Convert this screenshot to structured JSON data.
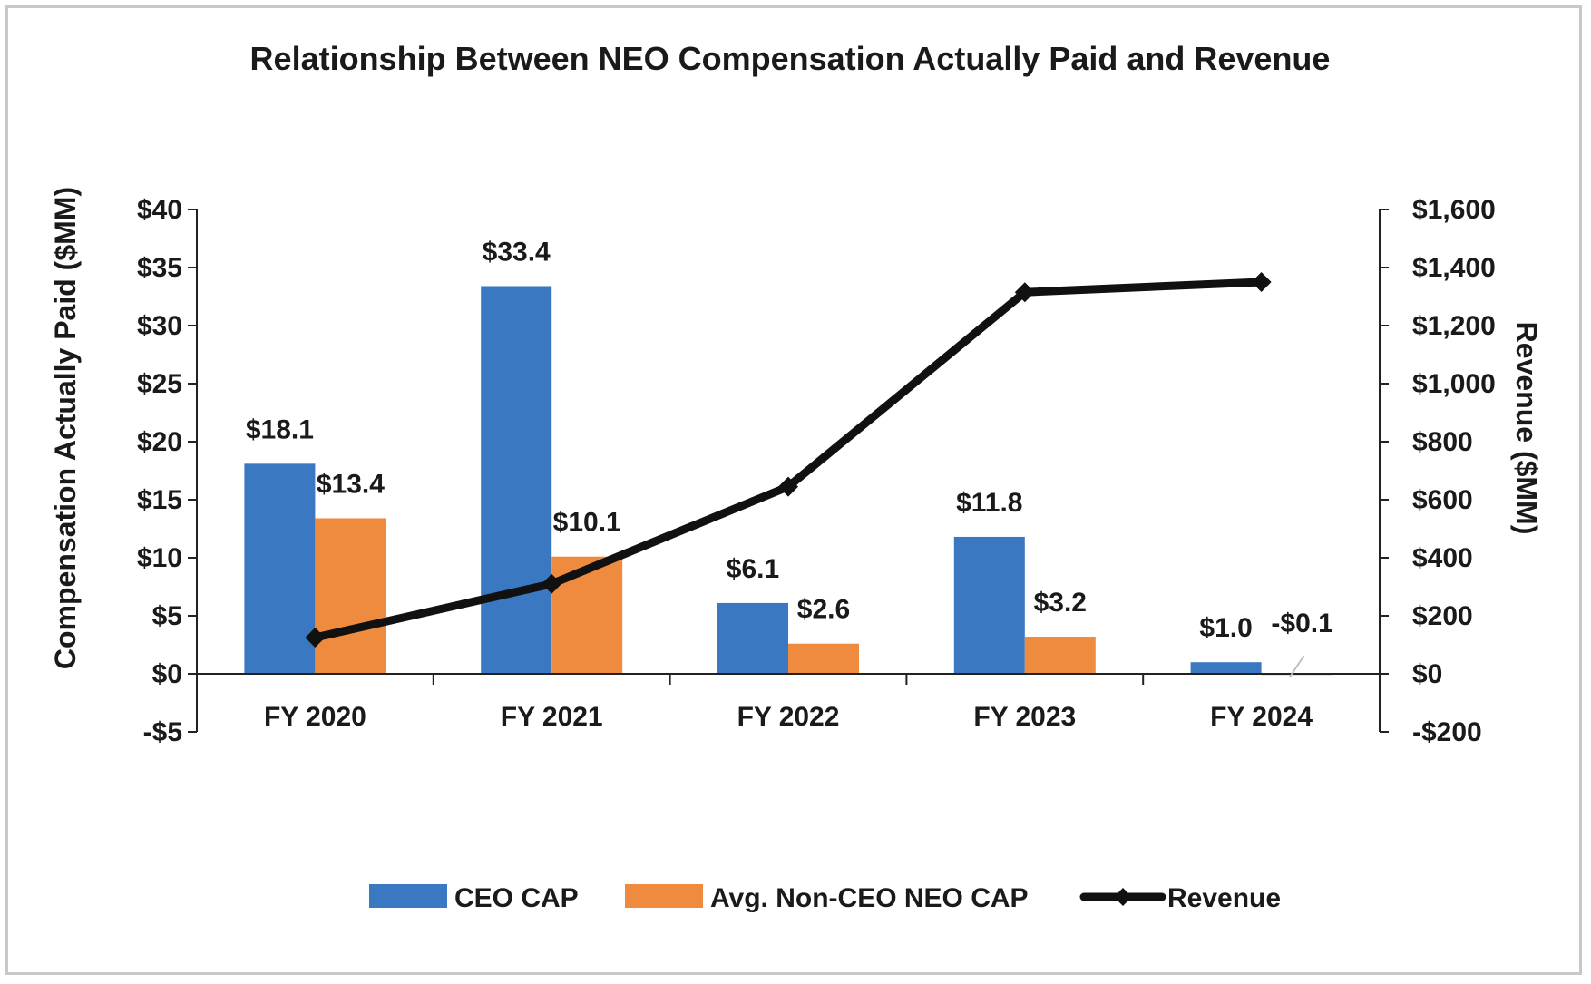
{
  "chart_data": {
    "type": "bar",
    "title": "Relationship Between NEO Compensation Actually Paid and Revenue",
    "categories": [
      "FY 2020",
      "FY 2021",
      "FY 2022",
      "FY 2023",
      "FY 2024"
    ],
    "ylabel": "Compensation Actually Paid ($MM)",
    "y2label": "Revenue ($MM)",
    "ylim": [
      -5,
      40
    ],
    "y_ticks": [
      -5,
      0,
      5,
      10,
      15,
      20,
      25,
      30,
      35,
      40
    ],
    "y_tick_labels": [
      "-$5",
      "$0",
      "$5",
      "$10",
      "$15",
      "$20",
      "$25",
      "$30",
      "$35",
      "$40"
    ],
    "y2lim": [
      -200,
      1600
    ],
    "y2_ticks": [
      -200,
      0,
      200,
      400,
      600,
      800,
      1000,
      1200,
      1400,
      1600
    ],
    "y2_tick_labels": [
      "-$200",
      "$0",
      "$200",
      "$400",
      "$600",
      "$800",
      "$1,000",
      "$1,200",
      "$1,400",
      "$1,600"
    ],
    "series": [
      {
        "name": "CEO CAP",
        "type": "bar",
        "axis": "left",
        "color": "#3a78c2",
        "values": [
          18.1,
          33.4,
          6.1,
          11.8,
          1.0
        ],
        "labels": [
          "$18.1",
          "$33.4",
          "$6.1",
          "$11.8",
          "$1.0"
        ]
      },
      {
        "name": "Avg. Non-CEO NEO CAP",
        "type": "bar",
        "axis": "left",
        "color": "#ee8b3f",
        "values": [
          13.4,
          10.1,
          2.6,
          3.2,
          -0.1
        ],
        "labels": [
          "$13.4",
          "$10.1",
          "$2.6",
          "$3.2",
          "-$0.1"
        ]
      },
      {
        "name": "Revenue",
        "type": "line",
        "axis": "right",
        "color": "#111111",
        "values": [
          125,
          310,
          645,
          1315,
          1350
        ]
      }
    ],
    "legend_position": "bottom",
    "grid": false
  }
}
